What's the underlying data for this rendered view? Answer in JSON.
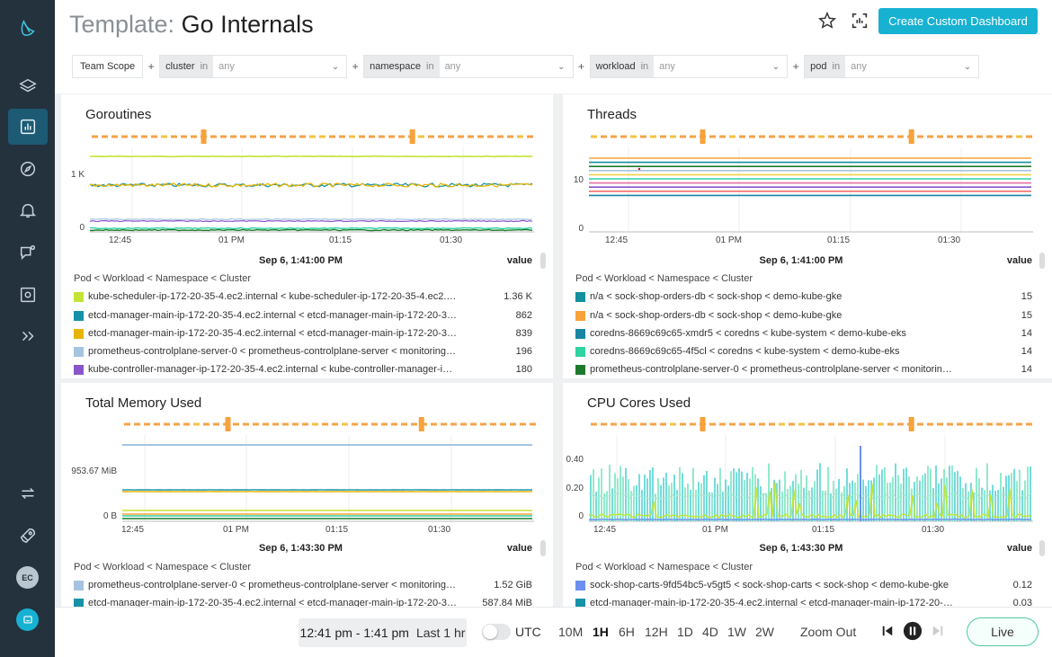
{
  "header": {
    "title_prefix": "Template:",
    "title_name": "Go Internals",
    "create_label": "Create Custom Dashboard"
  },
  "filters": {
    "scope": "Team Scope",
    "plus": "+",
    "in": "in",
    "items": [
      {
        "key": "cluster",
        "value": "any"
      },
      {
        "key": "namespace",
        "value": "any"
      },
      {
        "key": "workload",
        "value": "any"
      },
      {
        "key": "pod",
        "value": "any"
      }
    ]
  },
  "sidebar": {
    "avatar": "EC",
    "icons": [
      "logo-icon",
      "layers-icon",
      "dashboard-icon",
      "compass-icon",
      "bell-icon",
      "chat-icon",
      "capture-icon",
      "expand-icon",
      "sync-icon",
      "rocket-icon",
      "chat-bubble-icon"
    ]
  },
  "panels": [
    {
      "title": "Goroutines",
      "date": "Sep 6, 1:41:00 PM",
      "value_label": "value",
      "legend_header": "Pod < Workload < Namespace < Cluster",
      "y_ticks": [
        "1 K",
        "0"
      ],
      "x_ticks": [
        "12:45",
        "01 PM",
        "01:15",
        "01:30"
      ],
      "rows": [
        {
          "color": "#c3e436",
          "name": "kube-scheduler-ip-172-20-35-4.ec2.internal < kube-scheduler-ip-172-20-35-4.ec2.internal < k...",
          "value": "1.36 K"
        },
        {
          "color": "#1592a8",
          "name": "etcd-manager-main-ip-172-20-35-4.ec2.internal < etcd-manager-main-ip-172-20-35-4.ec2.int...",
          "value": "862"
        },
        {
          "color": "#e7b400",
          "name": "etcd-manager-main-ip-172-20-35-4.ec2.internal < etcd-manager-main-ip-172-20-35-4.ec2.int...",
          "value": "839"
        },
        {
          "color": "#a6c4e2",
          "name": "prometheus-controlplane-server-0 < prometheus-controlplane-server < monitoring < demo-k...",
          "value": "196"
        },
        {
          "color": "#8a55c9",
          "name": "kube-controller-manager-ip-172-20-35-4.ec2.internal < kube-controller-manager-ip-172-20-3...",
          "value": "180"
        }
      ]
    },
    {
      "title": "Threads",
      "date": "Sep 6, 1:41:00 PM",
      "value_label": "value",
      "legend_header": "Pod < Workload < Namespace < Cluster",
      "y_ticks": [
        "10",
        "0"
      ],
      "x_ticks": [
        "12:45",
        "01 PM",
        "01:15",
        "01:30"
      ],
      "rows": [
        {
          "color": "#138f9e",
          "name": "n/a < sock-shop-orders-db < sock-shop < demo-kube-gke",
          "value": "15"
        },
        {
          "color": "#f7a23a",
          "name": "n/a < sock-shop-orders-db < sock-shop < demo-kube-gke",
          "value": "15"
        },
        {
          "color": "#1a84a3",
          "name": "coredns-8669c69c65-xmdr5 < coredns < kube-system < demo-kube-eks",
          "value": "14"
        },
        {
          "color": "#2ed4a2",
          "name": "coredns-8669c69c65-4f5cl < coredns < kube-system < demo-kube-eks",
          "value": "14"
        },
        {
          "color": "#1d7a2c",
          "name": "prometheus-controlplane-server-0 < prometheus-controlplane-server < monitoring < demo-ku...",
          "value": "14"
        }
      ]
    },
    {
      "title": "Total Memory Used",
      "date": "Sep 6, 1:43:30 PM",
      "value_label": "value",
      "legend_header": "Pod < Workload < Namespace < Cluster",
      "y_ticks": [
        "953.67 MiB",
        "0 B"
      ],
      "x_ticks": [
        "12:45",
        "01 PM",
        "01:15",
        "01:30"
      ],
      "rows": [
        {
          "color": "#a6c4e2",
          "name": "prometheus-controlplane-server-0 < prometheus-controlplane-server < monitoring < de...",
          "value": "1.52 GiB"
        },
        {
          "color": "#1592a8",
          "name": "etcd-manager-main-ip-172-20-35-4.ec2.internal < etcd-manager-main-ip-172-20-35-4.e...",
          "value": "587.84 MiB"
        }
      ]
    },
    {
      "title": "CPU Cores Used",
      "date": "Sep 6, 1:43:30 PM",
      "value_label": "value",
      "legend_header": "Pod < Workload < Namespace < Cluster",
      "y_ticks": [
        "0.40",
        "0.20",
        "0"
      ],
      "x_ticks": [
        "12:45",
        "01 PM",
        "01:15",
        "01:30"
      ],
      "rows": [
        {
          "color": "#6b8ff0",
          "name": "sock-shop-carts-9fd54bc5-v5gt5 < sock-shop-carts < sock-shop < demo-kube-gke",
          "value": "0.12"
        },
        {
          "color": "#1592a8",
          "name": "etcd-manager-main-ip-172-20-35-4.ec2.internal < etcd-manager-main-ip-172-20-35-4.ec2.in...",
          "value": "0.03"
        }
      ]
    }
  ],
  "timebar": {
    "range": "12:41 pm - 1:41 pm",
    "last": "Last 1 hr",
    "utc": "UTC",
    "options": [
      "10M",
      "1H",
      "6H",
      "12H",
      "1D",
      "4D",
      "1W",
      "2W"
    ],
    "selected": "1H",
    "zoom_out": "Zoom Out",
    "live": "Live"
  }
}
